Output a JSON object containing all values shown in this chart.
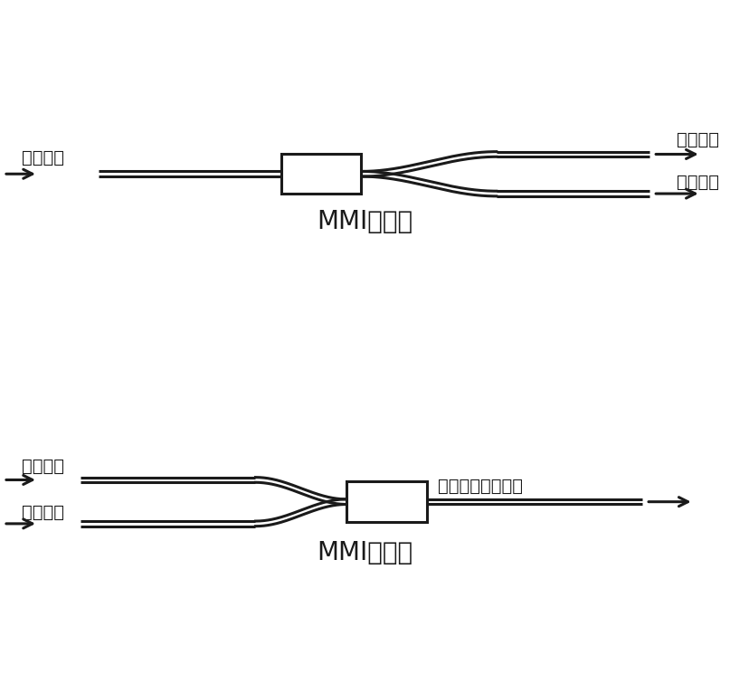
{
  "bg_color": "#ffffff",
  "line_color": "#1a1a1a",
  "line_width": 2.2,
  "fig_width": 8.07,
  "fig_height": 7.55,
  "top_label": "MMI分束器",
  "bottom_label": "MMI合束器",
  "label_fontsize": 20,
  "annot_fontsize": 14,
  "top_input_label": "激光输入",
  "top_output_label1": "激光输出",
  "top_output_label2": "激光输出",
  "bottom_input_label1": "激光输入",
  "bottom_input_label2": "激光输入",
  "bottom_output_label": "干涉后的激光输出"
}
